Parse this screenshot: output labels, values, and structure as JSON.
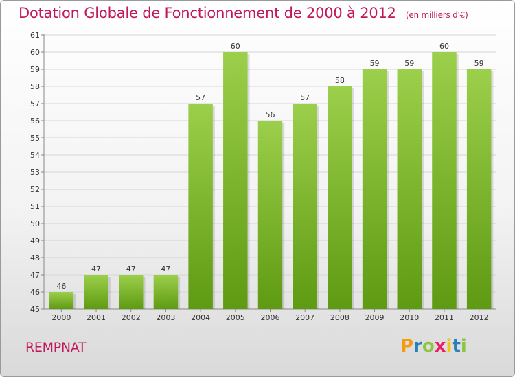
{
  "header": {
    "title": "Dotation Globale de Fonctionnement de 2000 à 2012",
    "unit": "(en milliers d'€)"
  },
  "footer": {
    "commune": "REMPNAT",
    "logo_letters": [
      "P",
      "r",
      "o",
      "x",
      "i",
      "t",
      "i"
    ],
    "logo_colors": [
      "#f39c12",
      "#2980b9",
      "#8cc63f",
      "#e91e63",
      "#f1c40f",
      "#2980b9",
      "#8cc63f"
    ]
  },
  "chart_data": {
    "type": "bar",
    "title": "Dotation Globale de Fonctionnement de 2000 à 2012",
    "subtitle": "(en milliers d'€)",
    "categories": [
      "2000",
      "2001",
      "2002",
      "2003",
      "2004",
      "2005",
      "2006",
      "2007",
      "2008",
      "2009",
      "2010",
      "2011",
      "2012"
    ],
    "values": [
      46,
      47,
      47,
      47,
      57,
      60,
      56,
      57,
      58,
      59,
      59,
      60,
      59
    ],
    "ylim": [
      45,
      61
    ],
    "yticks": [
      45,
      46,
      47,
      48,
      49,
      50,
      51,
      52,
      53,
      54,
      55,
      56,
      57,
      58,
      59,
      60,
      61
    ],
    "grid": true,
    "colors": {
      "bar_top": "#9ccf4b",
      "bar_bottom": "#5e9a12",
      "grid": "#d5d5d5"
    }
  }
}
